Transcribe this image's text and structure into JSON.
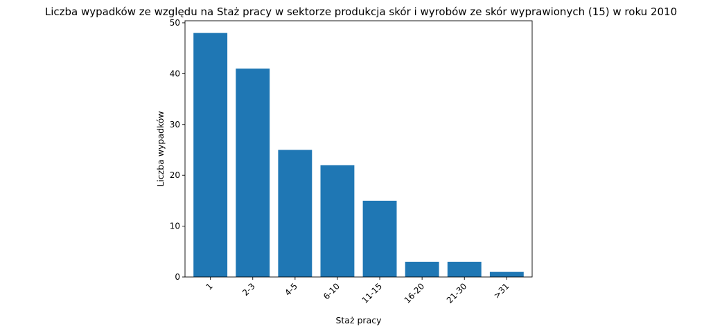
{
  "chart_data": {
    "type": "bar",
    "title": "Liczba wypadków ze względu na Staż pracy w sektorze produkcja skór i wyrobów ze skór wyprawionych  (15) w roku 2010",
    "xlabel": "Staż pracy",
    "ylabel": "Liczba wypadków",
    "categories": [
      "1",
      "2-3",
      "4-5",
      "6-10",
      "11-15",
      "16-20",
      "21-30",
      ">31"
    ],
    "values": [
      48,
      41,
      25,
      22,
      15,
      3,
      3,
      1
    ],
    "ylim": [
      0,
      50.4
    ],
    "yticks": [
      0,
      10,
      20,
      30,
      40,
      50
    ],
    "grid": false,
    "legend": "none",
    "bar_color": "#1f77b4"
  }
}
